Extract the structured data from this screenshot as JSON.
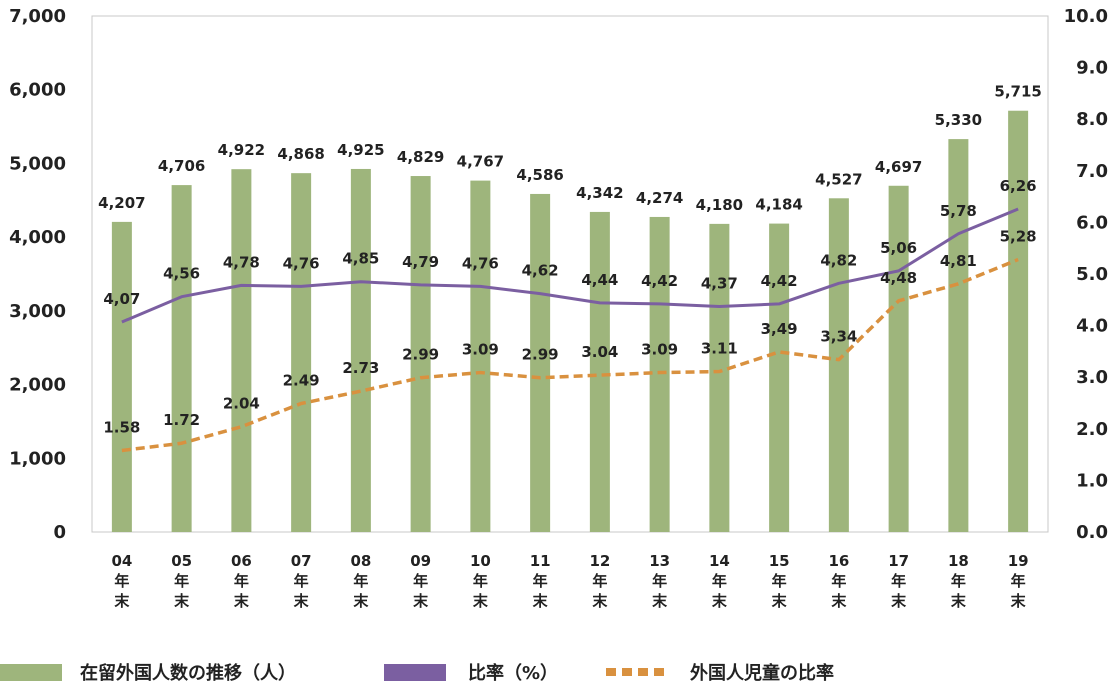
{
  "chart_data": {
    "type": "bar",
    "categories": [
      [
        "04",
        "年",
        "末"
      ],
      [
        "05",
        "年",
        "末"
      ],
      [
        "06",
        "年",
        "末"
      ],
      [
        "07",
        "年",
        "末"
      ],
      [
        "08",
        "年",
        "末"
      ],
      [
        "09",
        "年",
        "末"
      ],
      [
        "10",
        "年",
        "末"
      ],
      [
        "11",
        "年",
        "末"
      ],
      [
        "12",
        "年",
        "末"
      ],
      [
        "13",
        "年",
        "末"
      ],
      [
        "14",
        "年",
        "末"
      ],
      [
        "15",
        "年",
        "末"
      ],
      [
        "16",
        "年",
        "末"
      ],
      [
        "17",
        "年",
        "末"
      ],
      [
        "18",
        "年",
        "末"
      ],
      [
        "19",
        "年",
        "末"
      ]
    ],
    "left_axis": {
      "ylim": [
        0,
        7000
      ],
      "ticks": [
        "0",
        "1,000",
        "2,000",
        "3,000",
        "4,000",
        "5,000",
        "6,000",
        "7,000"
      ]
    },
    "right_axis": {
      "ylim": [
        0,
        10
      ],
      "ticks": [
        "0.0",
        "1.0",
        "2.0",
        "3.0",
        "4.0",
        "5.0",
        "6.0",
        "7.0",
        "8.0",
        "9.0",
        "10.0"
      ]
    },
    "grid": false,
    "legend_position": "bottom",
    "series": [
      {
        "name": "在留外国人数の推移（人）",
        "type": "bar",
        "axis": "left",
        "color": "#9eb57c",
        "values": [
          4207,
          4706,
          4922,
          4868,
          4925,
          4829,
          4767,
          4586,
          4342,
          4274,
          4180,
          4184,
          4527,
          4697,
          5330,
          5715
        ],
        "labels": [
          "4,207",
          "4,706",
          "4,922",
          "4,868",
          "4,925",
          "4,829",
          "4,767",
          "4,586",
          "4,342",
          "4,274",
          "4,180",
          "4,184",
          "4,527",
          "4,697",
          "5,330",
          "5,715"
        ]
      },
      {
        "name": "比率（%）",
        "type": "line",
        "axis": "right",
        "color": "#7b5fa1",
        "values": [
          4.07,
          4.56,
          4.78,
          4.76,
          4.85,
          4.79,
          4.76,
          4.62,
          4.44,
          4.42,
          4.37,
          4.42,
          4.82,
          5.06,
          5.78,
          6.26
        ],
        "labels": [
          "4,07",
          "4,56",
          "4,78",
          "4,76",
          "4,85",
          "4,79",
          "4,76",
          "4,62",
          "4,44",
          "4,42",
          "4,37",
          "4,42",
          "4,82",
          "5,06",
          "5,78",
          "6,26"
        ]
      },
      {
        "name": "外国人児童の比率",
        "type": "line-dashed",
        "axis": "right",
        "color": "#d9913f",
        "values": [
          1.58,
          1.72,
          2.04,
          2.49,
          2.73,
          2.99,
          3.09,
          2.99,
          3.04,
          3.09,
          3.11,
          3.49,
          3.34,
          4.48,
          4.81,
          5.28
        ],
        "labels": [
          "1.58",
          "1.72",
          "2.04",
          "2.49",
          "2.73",
          "2.99",
          "3.09",
          "2.99",
          "3.04",
          "3.09",
          "3.11",
          "3,49",
          "3,34",
          "4,48",
          "4,81",
          "5,28"
        ]
      }
    ]
  }
}
